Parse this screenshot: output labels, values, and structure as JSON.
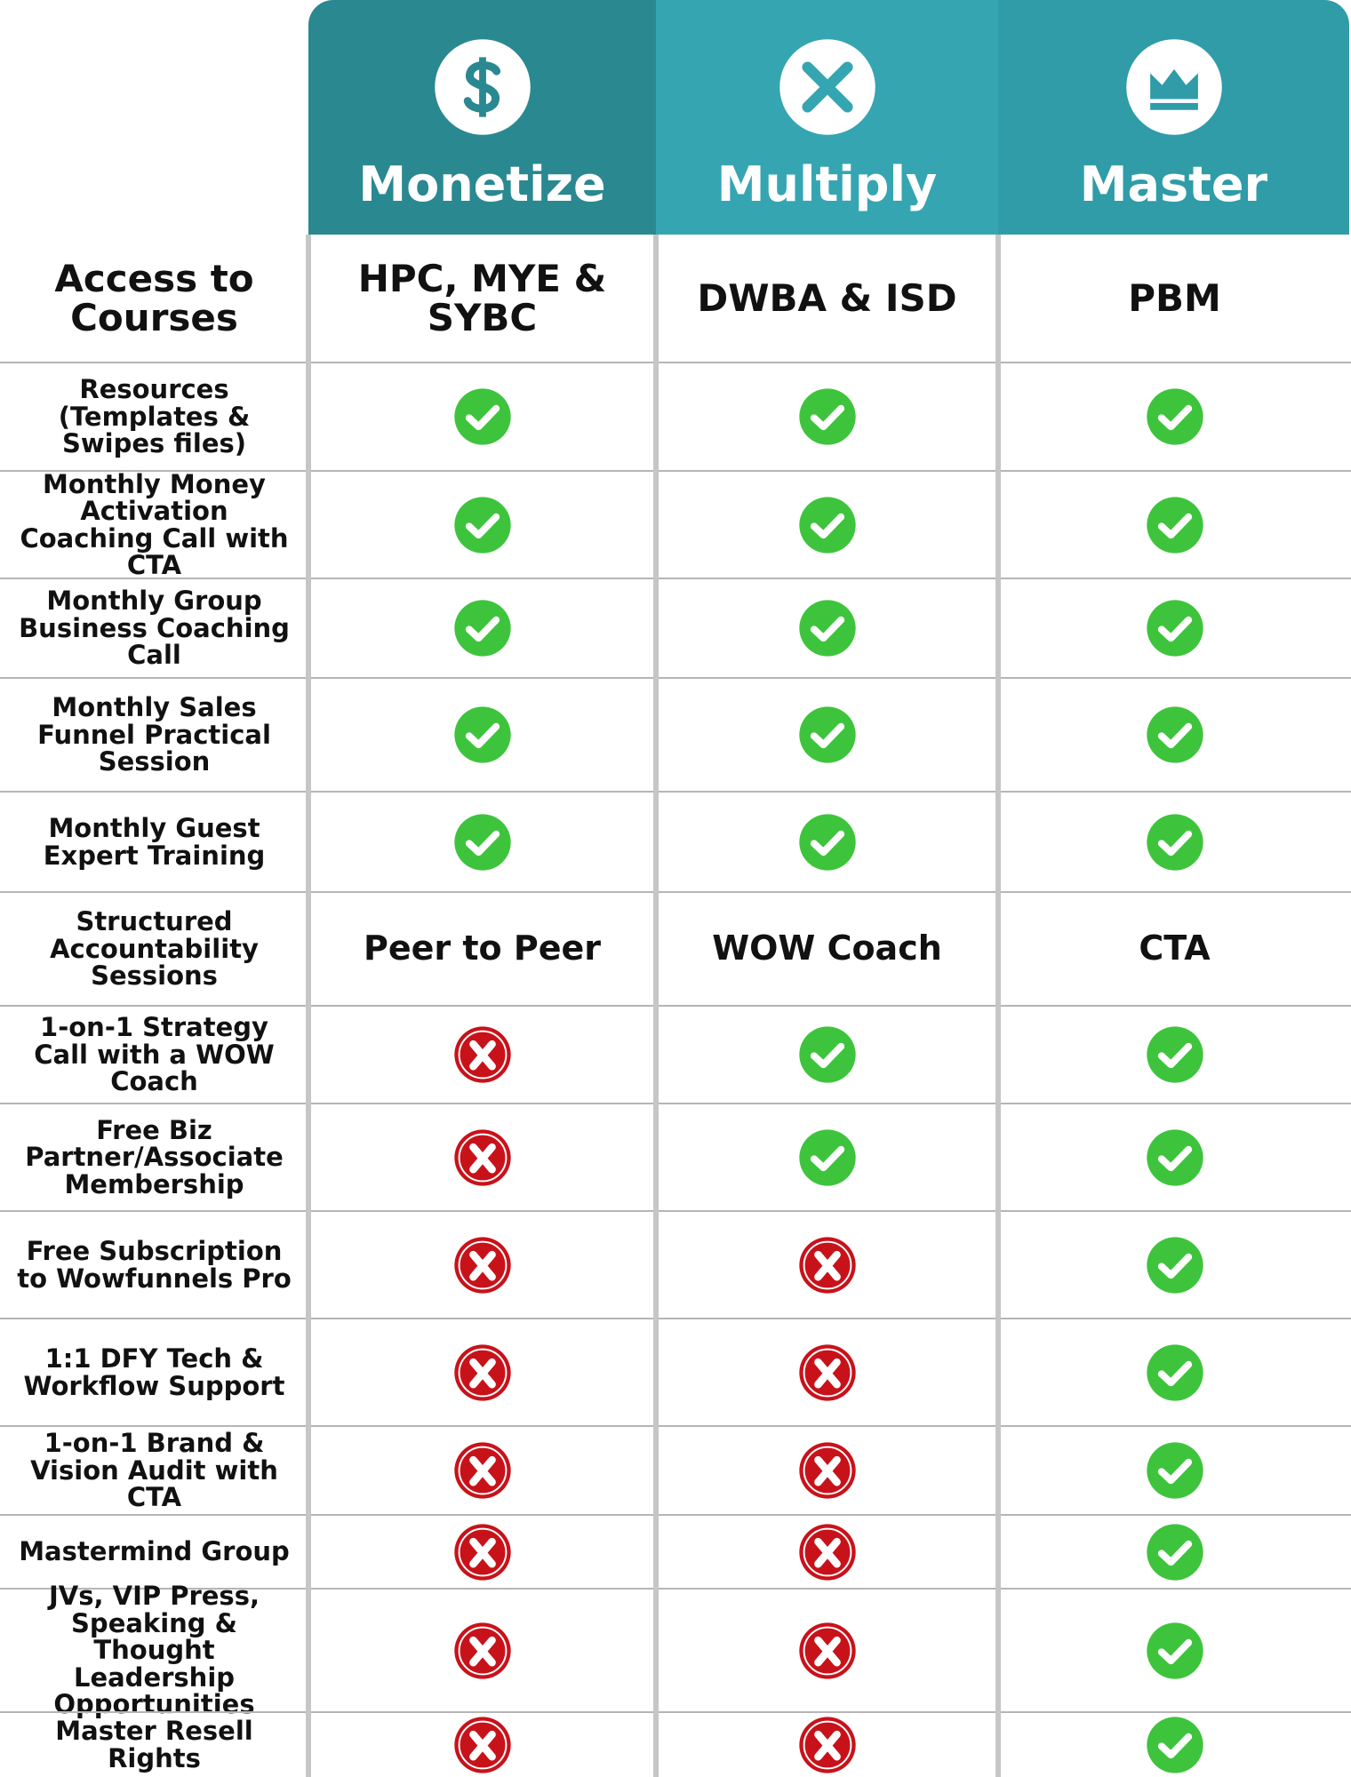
{
  "columns": [
    {
      "name": "Monetize"
    },
    {
      "name": "Multiply"
    },
    {
      "name": "Master"
    }
  ],
  "rows": [
    {
      "label": "Access to Courses",
      "cells": [
        "HPC, MYE & SYBC",
        "DWBA & ISD",
        "PBM"
      ]
    },
    {
      "label": "Resources (Templates & Swipes files)",
      "cells": [
        true,
        true,
        true
      ]
    },
    {
      "label": "Monthly Money Activation Coaching Call with CTA",
      "cells": [
        true,
        true,
        true
      ]
    },
    {
      "label": "Monthly Group Business Coaching Call",
      "cells": [
        true,
        true,
        true
      ]
    },
    {
      "label": "Monthly Sales Funnel Practical Session",
      "cells": [
        true,
        true,
        true
      ]
    },
    {
      "label": "Monthly Guest Expert Training",
      "cells": [
        true,
        true,
        true
      ]
    },
    {
      "label": "Structured Accountability Sessions",
      "cells": [
        "Peer to Peer",
        "WOW Coach",
        "CTA"
      ]
    },
    {
      "label": "1-on-1 Strategy Call with a WOW Coach",
      "cells": [
        false,
        true,
        true
      ]
    },
    {
      "label": "Free Biz Partner/Associate Membership",
      "cells": [
        false,
        true,
        true
      ]
    },
    {
      "label": "Free Subscription to Wowfunnels Pro",
      "cells": [
        false,
        false,
        true
      ]
    },
    {
      "label": "1:1 DFY Tech & Workflow Support",
      "cells": [
        false,
        false,
        true
      ]
    },
    {
      "label": "1-on-1 Brand & Vision Audit with CTA",
      "cells": [
        false,
        false,
        true
      ]
    },
    {
      "label": "Mastermind Group",
      "cells": [
        false,
        false,
        true
      ]
    },
    {
      "label": "JVs, VIP Press, Speaking & Thought Leadership Opportunities",
      "cells": [
        false,
        false,
        true
      ]
    },
    {
      "label": "Master Resell Rights",
      "cells": [
        false,
        false,
        true
      ]
    }
  ]
}
